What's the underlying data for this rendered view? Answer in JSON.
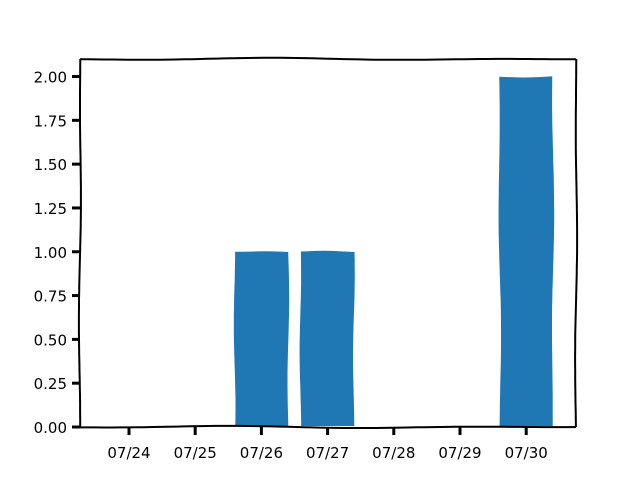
{
  "chart_data": {
    "type": "bar",
    "style": "xkcd",
    "title": "",
    "xlabel": "",
    "ylabel": "",
    "categories": [
      "07/24",
      "07/25",
      "07/26",
      "07/27",
      "07/28",
      "07/29",
      "07/30"
    ],
    "values": [
      0,
      0,
      1,
      1,
      0,
      0,
      2
    ],
    "ylim": [
      0,
      2.1
    ],
    "yticks": [
      "0.00",
      "0.25",
      "0.50",
      "0.75",
      "1.00",
      "1.25",
      "1.50",
      "1.75",
      "2.00"
    ],
    "grid": false,
    "legend": "none",
    "bar_color": "#1f77b4"
  }
}
